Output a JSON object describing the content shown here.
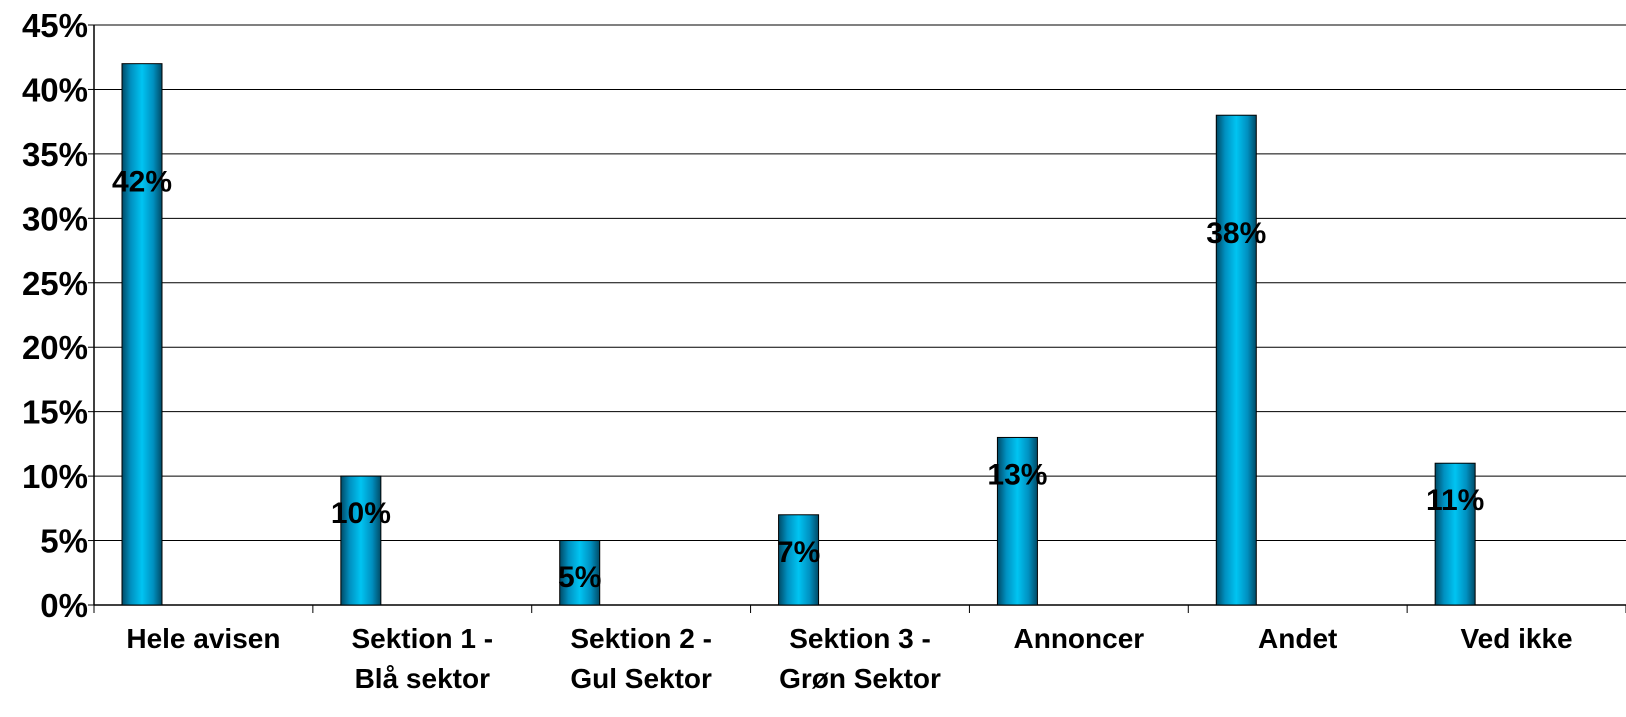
{
  "chart_data": {
    "type": "bar",
    "categories": [
      [
        "Hele avisen"
      ],
      [
        "Sektion 1 -",
        "Blå sektor"
      ],
      [
        "Sektion 2 -",
        "Gul Sektor"
      ],
      [
        "Sektion 3 -",
        "Grøn Sektor"
      ],
      [
        "Annoncer"
      ],
      [
        "Andet"
      ],
      [
        "Ved ikke"
      ]
    ],
    "values": [
      42,
      10,
      5,
      7,
      13,
      38,
      11
    ],
    "data_labels": [
      "42%",
      "10%",
      "5%",
      "7%",
      "13%",
      "38%",
      "11%"
    ],
    "ylim": [
      0,
      45
    ],
    "ytick_labels": [
      "0%",
      "5%",
      "10%",
      "15%",
      "20%",
      "25%",
      "30%",
      "35%",
      "40%",
      "45%"
    ],
    "grid": true,
    "legend": "none",
    "bar_color": "#00b4e6",
    "title": "",
    "xlabel": "",
    "ylabel": ""
  }
}
